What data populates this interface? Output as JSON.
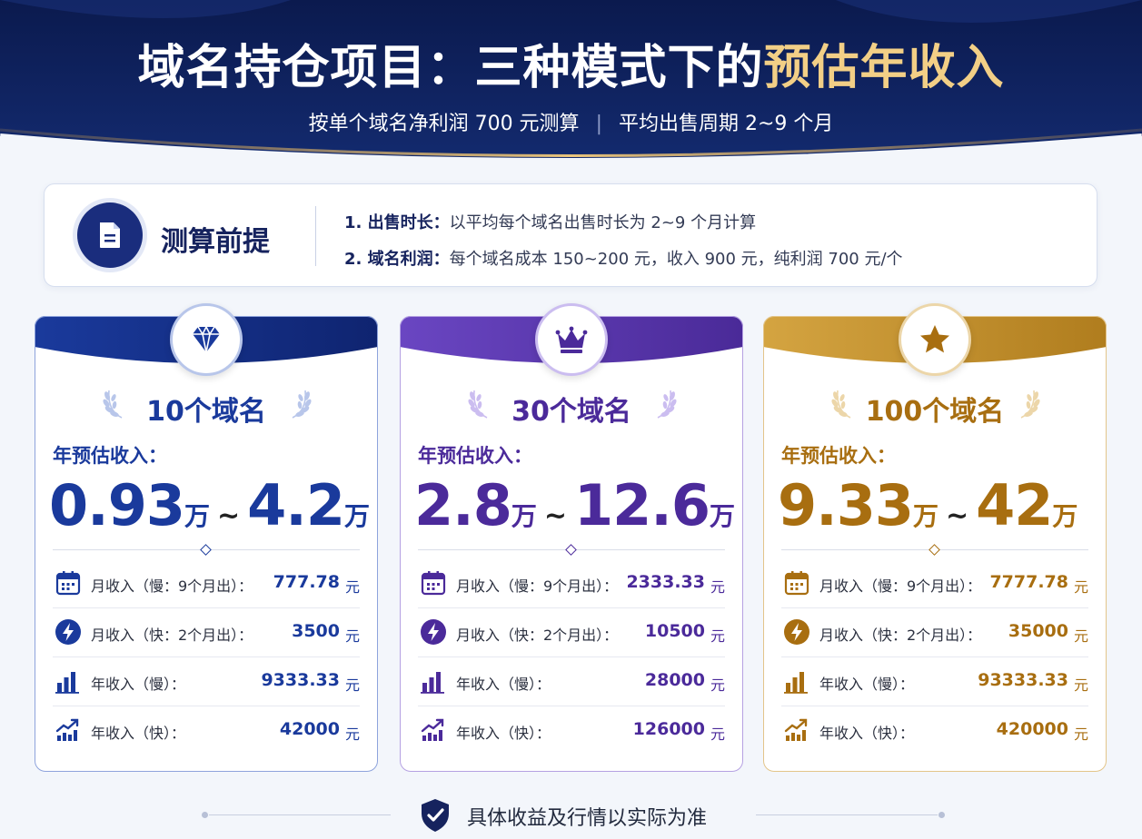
{
  "header": {
    "title_main": "域名持仓项目：三种模式下的",
    "title_highlight": "预估年收入",
    "subtitle_left": "按单个域名净利润 700 元测算",
    "subtitle_sep": "|",
    "subtitle_right": "平均出售周期 2~9 个月"
  },
  "premise": {
    "icon": "document-icon",
    "title": "测算前提",
    "lines": [
      {
        "label": "1. 出售时长：",
        "text": "以平均每个域名出售时长为 2~9 个月计算"
      },
      {
        "label": "2. 域名利润：",
        "text": "每个域名成本 150~200 元，收入 900 元，纯利润 700 元/个"
      }
    ]
  },
  "cards": [
    {
      "icon": "diamond-icon",
      "title": "10个域名",
      "estimate_label": "年预估收入：",
      "range_low": "0.93",
      "range_high": "4.2",
      "range_unit": "万",
      "range_tilde": "~",
      "color": "#1a3a9c",
      "rows": [
        {
          "icon": "calendar-icon",
          "label": "月收入（慢：9个月出）：",
          "value": "777.78",
          "unit": "元"
        },
        {
          "icon": "lightning-icon",
          "label": "月收入（快：2个月出）：",
          "value": "3500",
          "unit": "元"
        },
        {
          "icon": "bar-chart-icon",
          "label": "年收入（慢）：",
          "value": "9333.33",
          "unit": "元"
        },
        {
          "icon": "trend-up-icon",
          "label": "年收入（快）：",
          "value": "42000",
          "unit": "元"
        }
      ]
    },
    {
      "icon": "crown-icon",
      "title": "30个域名",
      "estimate_label": "年预估收入：",
      "range_low": "2.8",
      "range_high": "12.6",
      "range_unit": "万",
      "range_tilde": "~",
      "color": "#4b2a9a",
      "rows": [
        {
          "icon": "calendar-icon",
          "label": "月收入（慢：9个月出）：",
          "value": "2333.33",
          "unit": "元"
        },
        {
          "icon": "lightning-icon",
          "label": "月收入（快：2个月出）：",
          "value": "10500",
          "unit": "元"
        },
        {
          "icon": "bar-chart-icon",
          "label": "年收入（慢）：",
          "value": "28000",
          "unit": "元"
        },
        {
          "icon": "trend-up-icon",
          "label": "年收入（快）：",
          "value": "126000",
          "unit": "元"
        }
      ]
    },
    {
      "icon": "star-icon",
      "title": "100个域名",
      "estimate_label": "年预估收入：",
      "range_low": "9.33",
      "range_high": "42",
      "range_unit": "万",
      "range_tilde": "~",
      "color": "#a86e10",
      "rows": [
        {
          "icon": "calendar-icon",
          "label": "月收入（慢：9个月出）：",
          "value": "7777.78",
          "unit": "元"
        },
        {
          "icon": "lightning-icon",
          "label": "月收入（快：2个月出）：",
          "value": "35000",
          "unit": "元"
        },
        {
          "icon": "bar-chart-icon",
          "label": "年收入（慢）：",
          "value": "93333.33",
          "unit": "元"
        },
        {
          "icon": "trend-up-icon",
          "label": "年收入（快）：",
          "value": "420000",
          "unit": "元"
        }
      ]
    }
  ],
  "footer": {
    "icon": "shield-check-icon",
    "text": "具体收益及行情以实际为准"
  }
}
